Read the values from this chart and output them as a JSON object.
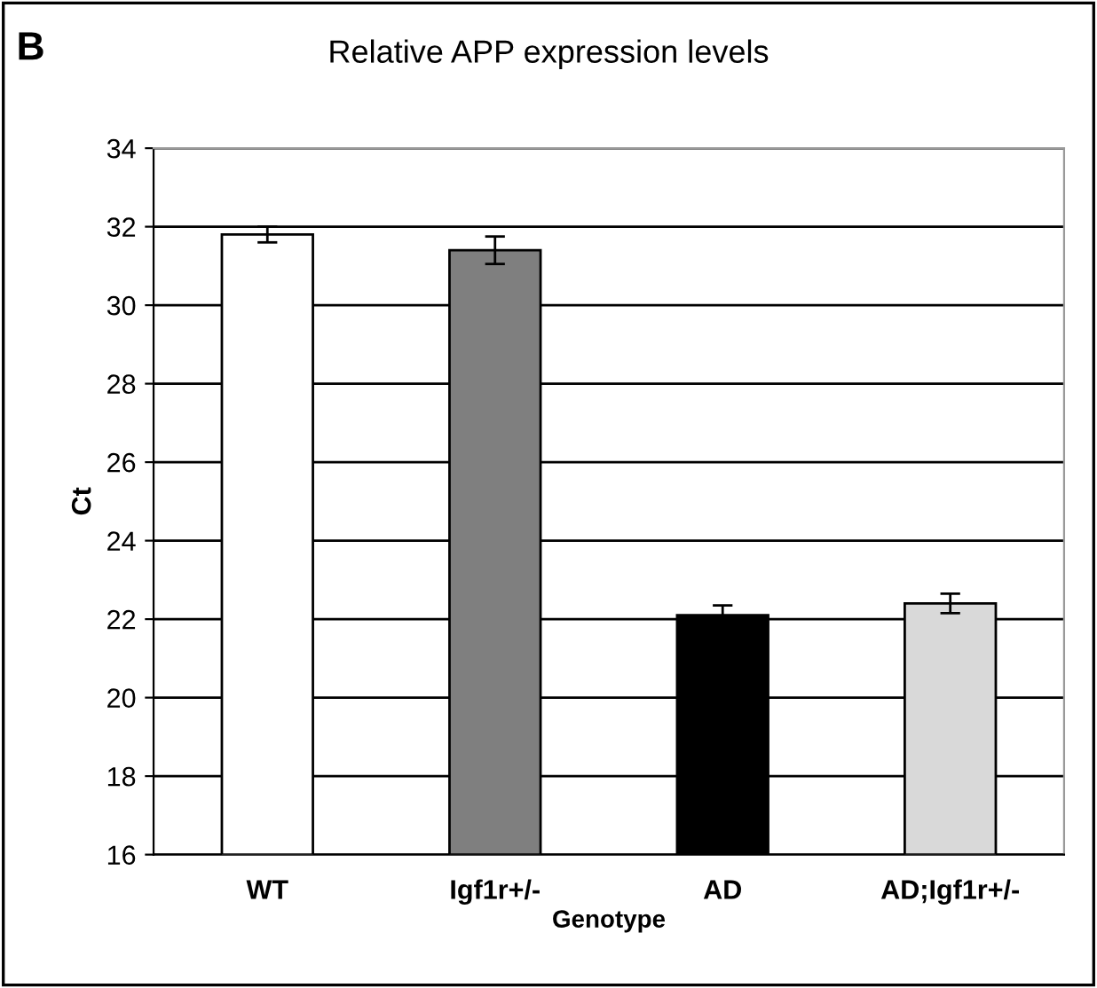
{
  "chart_data": {
    "type": "bar",
    "title": "Relative APP expression levels",
    "xlabel": "Genotype",
    "ylabel": "Ct",
    "annotations": [
      "B"
    ],
    "categories": [
      "WT",
      "Igf1r+/-",
      "AD",
      "AD;Igf1r+/-"
    ],
    "values": [
      31.8,
      31.4,
      22.1,
      22.4
    ],
    "errors": [
      0.2,
      0.35,
      0.25,
      0.25
    ],
    "colors": [
      "#ffffff",
      "#7f7f7f",
      "#000000",
      "#d9d9d9"
    ],
    "ylim": [
      16,
      34
    ],
    "yticks": [
      16,
      18,
      20,
      22,
      24,
      26,
      28,
      30,
      32,
      34
    ],
    "grid": "y",
    "legend": false
  }
}
